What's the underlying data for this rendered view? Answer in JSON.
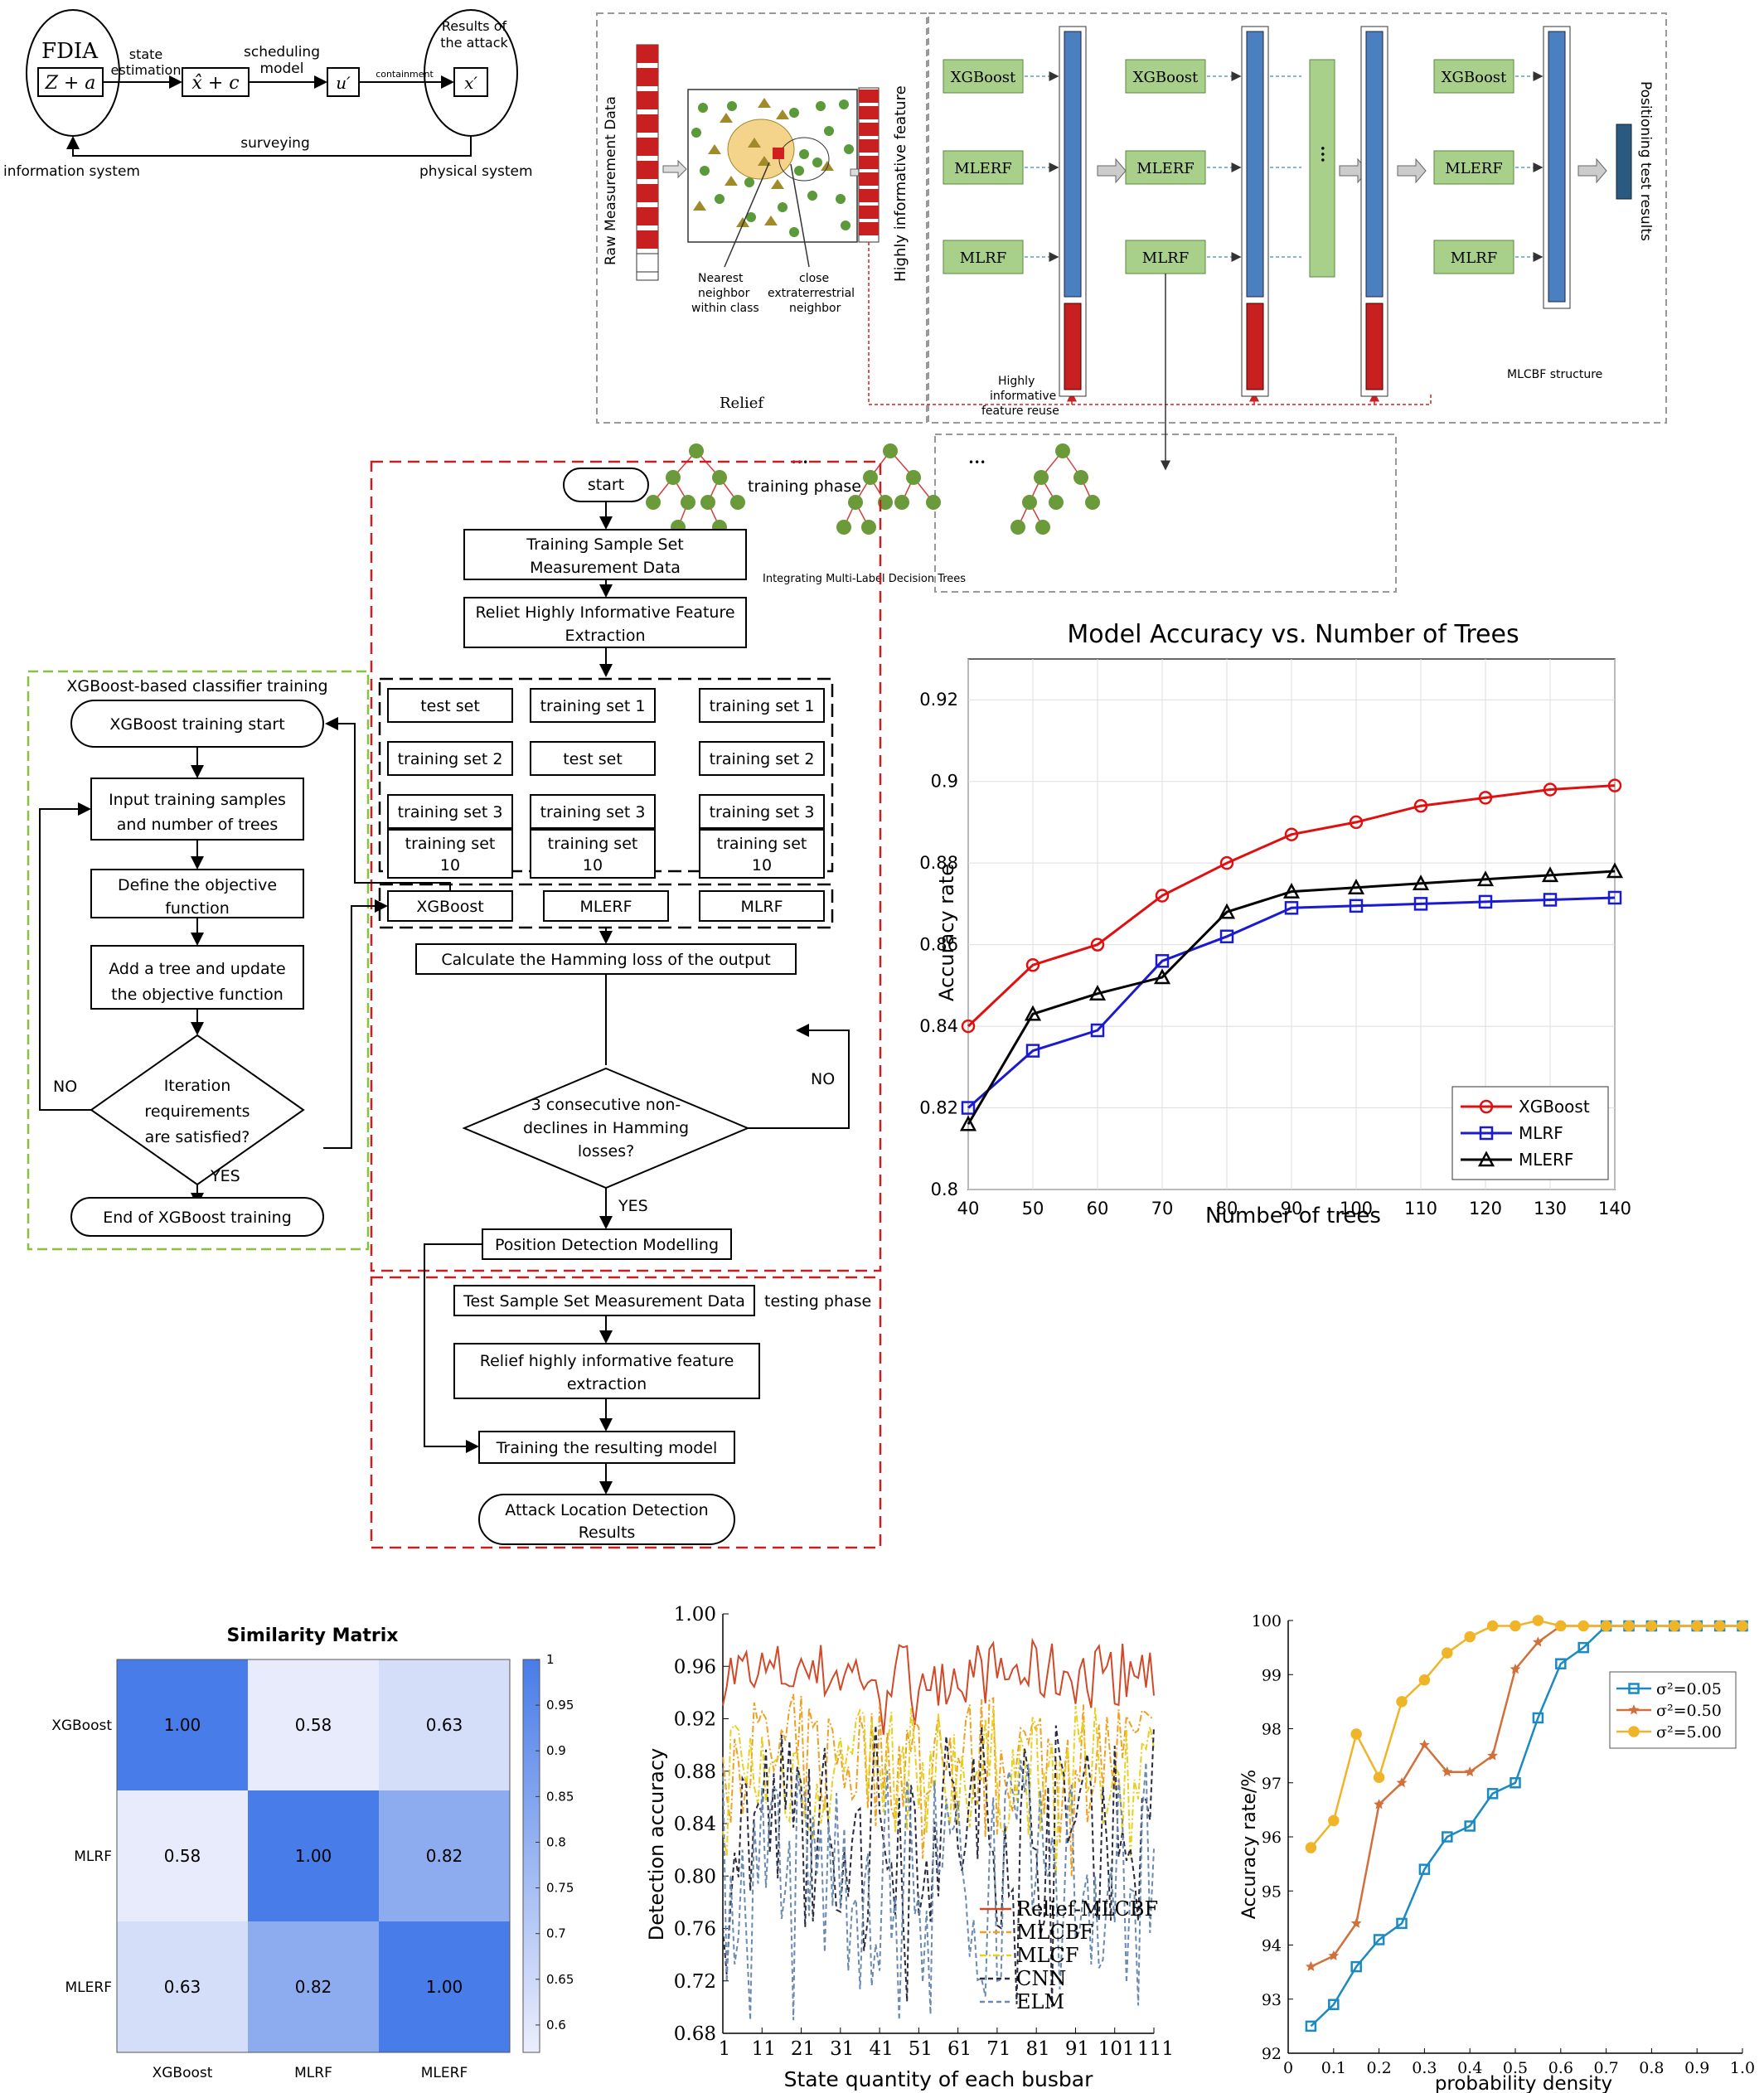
{
  "fdia": {
    "title": "FDIA",
    "z_box": "Z + a",
    "state_estimation": [
      "state",
      "estimation"
    ],
    "xc_box": "x̂ + c",
    "scheduling_model": [
      "scheduling",
      "model"
    ],
    "u_box": "u′",
    "containment": "containment",
    "x_box": "x′",
    "results": [
      "Results of",
      "the attack"
    ],
    "surveying": "surveying",
    "information_system": "information system",
    "physical_system": "physical system"
  },
  "mlcbf": {
    "raw_data": "Raw Measurement Data",
    "relief": "Relief",
    "nearest": [
      "Nearest",
      "neighbor",
      "within class"
    ],
    "close": [
      "close",
      "extraterrestrial",
      "neighbor"
    ],
    "highly_feature": "Highly informative feature",
    "reuse": [
      "Highly",
      "informative",
      "feature reuse"
    ],
    "structure": "MLCBF structure",
    "positioning": "Positioning test results",
    "xgboost": "XGBoost",
    "mlerf": "MLERF",
    "mlrf": "MLRF",
    "dots": "•••",
    "trees_label": "Integrating Multi-Label Decision Trees"
  },
  "flow": {
    "training_phase": "training phase",
    "start": "start",
    "sample_set": [
      "Training Sample Set",
      "Measurement Data"
    ],
    "relief_extract": [
      "Reliet Highly Informative Feature",
      "Extraction"
    ],
    "grid": [
      [
        "test set",
        "training set 1",
        "training set 1"
      ],
      [
        "training set 2",
        "test set",
        "training set 2"
      ],
      [
        "training set 3",
        "training set 3",
        "training set 3"
      ],
      [
        "training set\n10",
        "training set\n10",
        "training set\n10"
      ]
    ],
    "models": [
      "XGBoost",
      "MLERF",
      "MLRF"
    ],
    "hamming": "Calculate the Hamming loss of the output",
    "decision": [
      "3 consecutive non-",
      "declines in Hamming",
      "losses?"
    ],
    "no": "NO",
    "yes": "YES",
    "position_model": "Position Detection Modelling",
    "test_set": "Test Sample Set Measurement Data",
    "testing_phase": "testing phase",
    "relief_test": [
      "Relief highly informative feature",
      "extraction"
    ],
    "training_result": "Training the resulting model",
    "attack_results": [
      "Attack Location Detection",
      "Results"
    ]
  },
  "xgb_flow": {
    "title": "XGBoost-based classifier training",
    "start": "XGBoost training start",
    "input": [
      "Input training samples",
      "and number of trees"
    ],
    "define": [
      "Define the objective",
      "function"
    ],
    "add": [
      "Add a tree and update",
      "the objective function"
    ],
    "iter": [
      "Iteration",
      "requirements",
      "are satisfied?"
    ],
    "no": "NO",
    "yes": "YES",
    "end": "End of XGBoost training"
  },
  "chart_data": [
    {
      "type": "line",
      "title": "Model Accuracy vs. Number of Trees",
      "xlabel": "Number of trees",
      "ylabel": "Accuracy rate",
      "x": [
        40,
        50,
        60,
        70,
        80,
        90,
        100,
        110,
        120,
        130,
        140
      ],
      "xlim": [
        40,
        140
      ],
      "ylim": [
        0.8,
        0.93
      ],
      "yticks": [
        "0.8",
        "0.82",
        "0.84",
        "0.86",
        "0.88",
        "0.9",
        "0.92"
      ],
      "xticks": [
        "40",
        "50",
        "60",
        "70",
        "80",
        "90",
        "100",
        "110",
        "120",
        "130",
        "140"
      ],
      "legend": "bottom-right",
      "grid": true,
      "series": [
        {
          "name": "XGBoost",
          "color": "#e01010",
          "marker": "circle",
          "values": [
            0.84,
            0.855,
            0.86,
            0.872,
            0.88,
            0.887,
            0.89,
            0.894,
            0.896,
            0.898,
            0.899
          ]
        },
        {
          "name": "MLRF",
          "color": "#1a1ad0",
          "marker": "square",
          "values": [
            0.82,
            0.834,
            0.839,
            0.856,
            0.862,
            0.869,
            0.8695,
            0.87,
            0.8705,
            0.871,
            0.8715
          ]
        },
        {
          "name": "MLERF",
          "color": "#000000",
          "marker": "triangle",
          "values": [
            0.816,
            0.843,
            0.848,
            0.852,
            0.868,
            0.873,
            0.874,
            0.875,
            0.876,
            0.877,
            0.878
          ]
        }
      ]
    },
    {
      "type": "heatmap",
      "title": "Similarity Matrix",
      "rows": [
        "XGBoost",
        "MLRF",
        "MLERF"
      ],
      "cols": [
        "XGBoost",
        "MLRF",
        "MLERF"
      ],
      "values": [
        [
          1.0,
          0.58,
          0.63
        ],
        [
          0.58,
          1.0,
          0.82
        ],
        [
          0.63,
          0.82,
          1.0
        ]
      ],
      "labels": [
        [
          "1.00",
          "0.58",
          "0.63"
        ],
        [
          "0.58",
          "1.00",
          "0.82"
        ],
        [
          "0.63",
          "0.82",
          "1.00"
        ]
      ],
      "colorbar_ticks": [
        "1",
        "0.95",
        "0.9",
        "0.85",
        "0.8",
        "0.75",
        "0.7",
        "0.65",
        "0.6"
      ],
      "colorbar_range": [
        0.57,
        1.0
      ]
    },
    {
      "type": "line",
      "xlabel": "State quantity of each busbar",
      "ylabel": "Detection accuracy",
      "ylim": [
        0.68,
        1.0
      ],
      "xlim": [
        1,
        111
      ],
      "yticks": [
        "0.68",
        "0.72",
        "0.76",
        "0.80",
        "0.84",
        "0.88",
        "0.92",
        "0.96",
        "1.00"
      ],
      "xticks": [
        "1",
        "11",
        "21",
        "31",
        "41",
        "51",
        "61",
        "71",
        "81",
        "91",
        "101",
        "111"
      ],
      "legend": "bottom-right",
      "series": [
        {
          "name": "Relief-MLCBF",
          "color": "#d04a2a",
          "style": "solid",
          "base": 0.955,
          "amp": 0.025,
          "min": 0.9
        },
        {
          "name": "MLCBF",
          "color": "#f0a020",
          "style": "dashdot",
          "base": 0.89,
          "amp": 0.05,
          "min": 0.8
        },
        {
          "name": "MLCF",
          "color": "#e8d020",
          "style": "dashdot",
          "base": 0.88,
          "amp": 0.05,
          "min": 0.8
        },
        {
          "name": "CNN",
          "color": "#2a2a40",
          "style": "dashed",
          "base": 0.84,
          "amp": 0.08,
          "min": 0.7
        },
        {
          "name": "ELM",
          "color": "#6a8ab0",
          "style": "dashed",
          "base": 0.8,
          "amp": 0.09,
          "min": 0.69
        }
      ]
    },
    {
      "type": "line",
      "xlabel": "probability density",
      "ylabel": "Accuracy rate/%",
      "xlim": [
        0,
        1.0
      ],
      "ylim": [
        92,
        100
      ],
      "xticks": [
        "0",
        "0.1",
        "0.2",
        "0.3",
        "0.4",
        "0.5",
        "0.6",
        "0.7",
        "0.8",
        "0.9",
        "1.0"
      ],
      "yticks": [
        "92",
        "93",
        "94",
        "95",
        "96",
        "97",
        "98",
        "99",
        "100"
      ],
      "legend": "top-right",
      "x": [
        0.05,
        0.1,
        0.15,
        0.2,
        0.25,
        0.3,
        0.35,
        0.4,
        0.45,
        0.5,
        0.55,
        0.6,
        0.65,
        0.7,
        0.75,
        0.8,
        0.85,
        0.9,
        0.95,
        1.0
      ],
      "series": [
        {
          "name": "σ²=0.05",
          "color": "#1a8ac0",
          "marker": "square",
          "values": [
            92.5,
            92.9,
            93.6,
            94.1,
            94.4,
            95.4,
            96.0,
            96.2,
            96.8,
            97.0,
            98.2,
            99.2,
            99.5,
            99.9,
            99.9,
            99.9,
            99.9,
            99.9,
            99.9,
            99.9
          ]
        },
        {
          "name": "σ²=0.50",
          "color": "#d0703a",
          "marker": "star",
          "values": [
            93.6,
            93.8,
            94.4,
            96.6,
            97.0,
            97.7,
            97.2,
            97.2,
            97.5,
            99.1,
            99.6,
            99.9,
            99.9,
            99.9,
            99.9,
            99.9,
            99.9,
            99.9,
            99.9,
            99.9
          ]
        },
        {
          "name": "σ²=5.00",
          "color": "#f0b428",
          "marker": "circle",
          "values": [
            95.8,
            96.3,
            97.9,
            97.1,
            98.5,
            98.9,
            99.4,
            99.7,
            99.9,
            99.9,
            100.0,
            99.9,
            99.9,
            99.9,
            99.9,
            99.9,
            99.9,
            99.9,
            99.9,
            99.9
          ]
        }
      ]
    }
  ]
}
